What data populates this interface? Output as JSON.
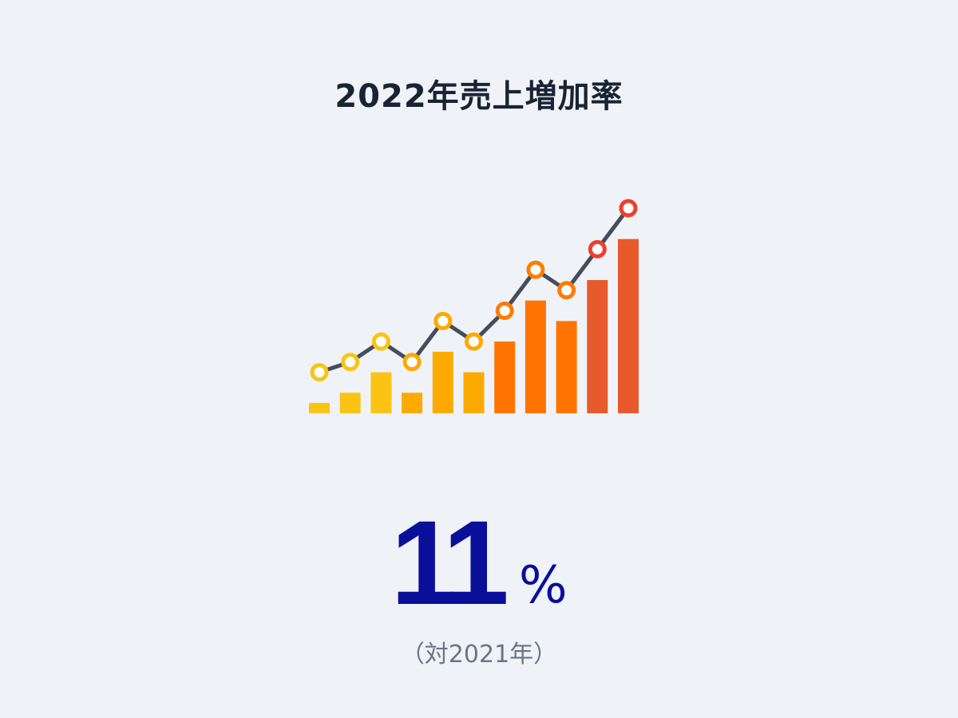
{
  "title": "2022年売上増加率",
  "stat": {
    "value": "11",
    "unit": "%",
    "note": "（対2021年）"
  },
  "colors": {
    "background": "#eff3f8",
    "title": "#1a2333",
    "stat": "#0a0f9a",
    "note": "#6c7387",
    "line": "#474c5c",
    "bars": [
      "#fcc314",
      "#fcc314",
      "#fcc314",
      "#fcaa00",
      "#fcaa00",
      "#fcaa00",
      "#ff7400",
      "#ff7400",
      "#ff7400",
      "#e85a2c",
      "#e85a2c"
    ],
    "markers": [
      "#fcc314",
      "#fcc314",
      "#fcc314",
      "#fcaa00",
      "#fcaa00",
      "#fcaa00",
      "#ff7c00",
      "#ff7c00",
      "#ff7c00",
      "#ef3f2c",
      "#ef3f2c"
    ]
  },
  "chart_data": {
    "type": "bar",
    "categories": [
      "",
      "",
      "",
      "",
      "",
      "",
      "",
      "",
      "",
      "",
      ""
    ],
    "series": [
      {
        "type": "bar",
        "values": [
          1,
          2,
          4,
          2,
          6,
          4,
          7,
          11,
          9,
          13,
          17
        ]
      },
      {
        "type": "line",
        "values": [
          4,
          5,
          7,
          5,
          9,
          7,
          10,
          14,
          12,
          16,
          20
        ]
      }
    ],
    "ylim": [
      0,
      21
    ],
    "grid": false,
    "axes": false,
    "legend": "none"
  }
}
